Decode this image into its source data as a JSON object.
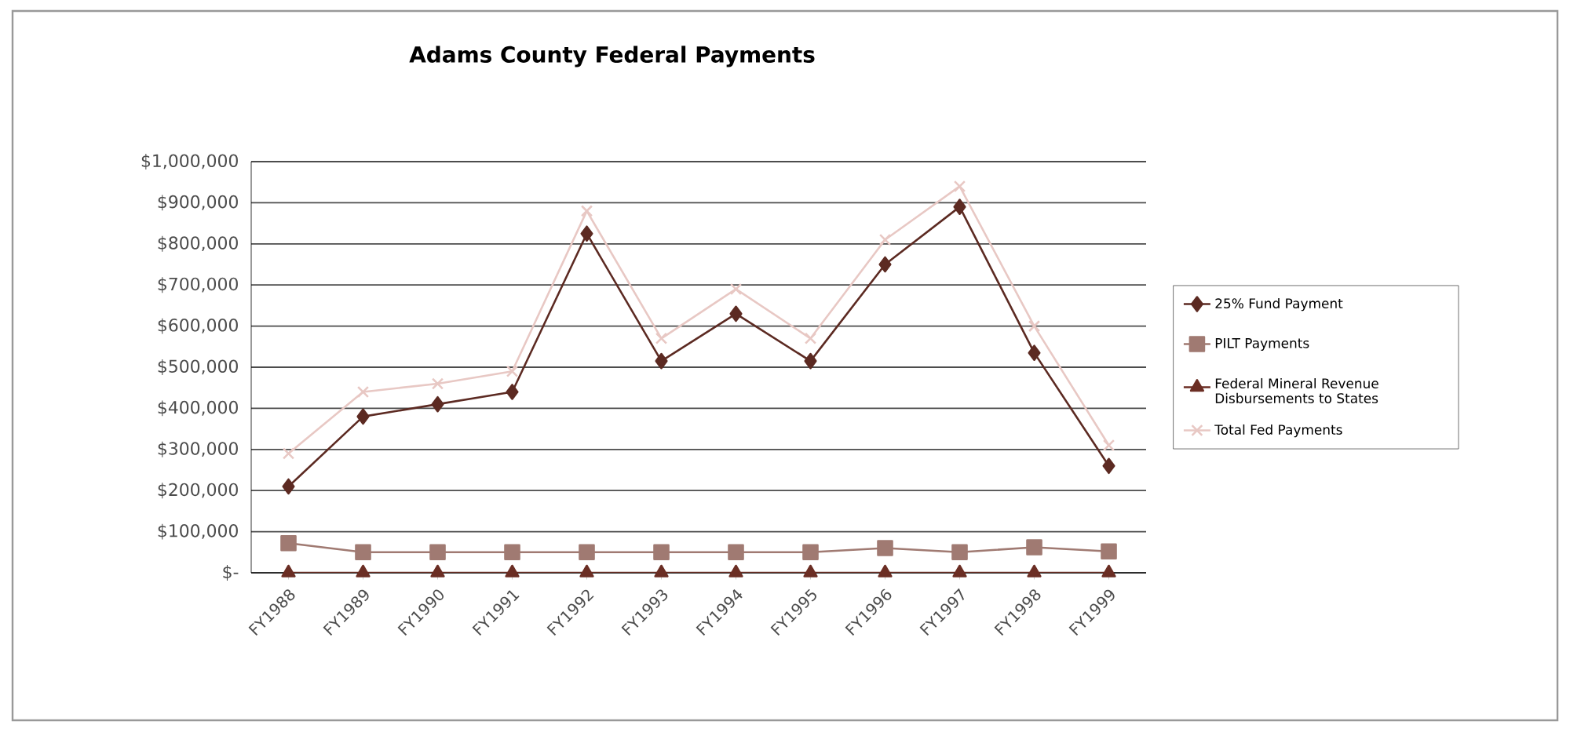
{
  "chart_data": {
    "type": "line",
    "title": "Adams County Federal Payments",
    "categories": [
      "FY1988",
      "FY1989",
      "FY1990",
      "FY1991",
      "FY1992",
      "FY1993",
      "FY1994",
      "FY1995",
      "FY1996",
      "FY1997",
      "FY1998",
      "FY1999"
    ],
    "series": [
      {
        "name": "25% Fund Payment",
        "color": "#5c2a22",
        "marker": "diamond",
        "values": [
          210000,
          380000,
          410000,
          440000,
          825000,
          515000,
          630000,
          515000,
          750000,
          890000,
          535000,
          260000
        ]
      },
      {
        "name": "PILT Payments",
        "color": "#a07a72",
        "marker": "square",
        "values": [
          72000,
          50000,
          50000,
          50000,
          50000,
          50000,
          50000,
          50000,
          60000,
          50000,
          62000,
          52000
        ]
      },
      {
        "name": "Federal Mineral Revenue Disbursements to States",
        "color": "#6b2e24",
        "marker": "triangle",
        "values": [
          0,
          0,
          0,
          0,
          0,
          0,
          0,
          0,
          0,
          0,
          0,
          0
        ]
      },
      {
        "name": "Total Fed Payments",
        "color": "#e8c8c4",
        "marker": "cross",
        "values": [
          290000,
          440000,
          460000,
          490000,
          880000,
          570000,
          690000,
          570000,
          810000,
          940000,
          600000,
          310000
        ]
      }
    ],
    "ylim": [
      0,
      1000000
    ],
    "yticks": [
      {
        "value": 0,
        "label": "$-"
      },
      {
        "value": 100000,
        "label": "$100,000"
      },
      {
        "value": 200000,
        "label": "$200,000"
      },
      {
        "value": 300000,
        "label": "$300,000"
      },
      {
        "value": 400000,
        "label": "$400,000"
      },
      {
        "value": 500000,
        "label": "$500,000"
      },
      {
        "value": 600000,
        "label": "$600,000"
      },
      {
        "value": 700000,
        "label": "$700,000"
      },
      {
        "value": 800000,
        "label": "$800,000"
      },
      {
        "value": 900000,
        "label": "$900,000"
      },
      {
        "value": 1000000,
        "label": "$1,000,000"
      }
    ],
    "grid": "y",
    "legend": "right",
    "line_style": "solid"
  }
}
